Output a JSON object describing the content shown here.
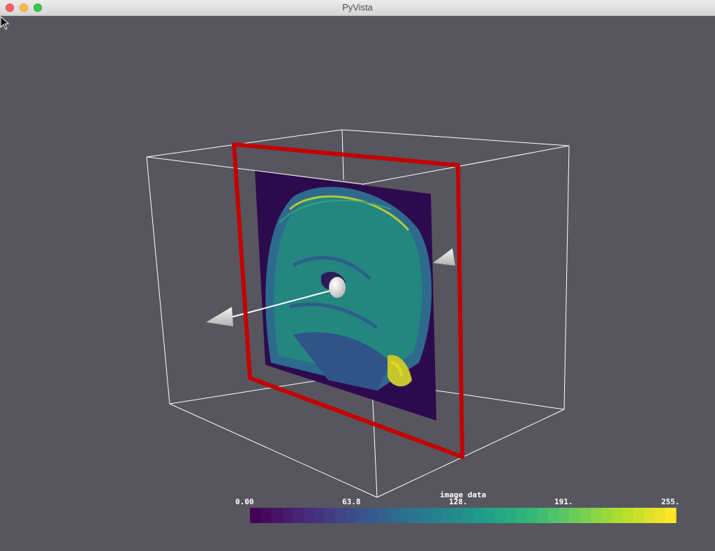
{
  "window": {
    "title": "PyVista"
  },
  "scene": {
    "background": "#57565e",
    "bounding_box_color": "#ffffff",
    "plane_widget_color": "#c40000",
    "colormap": "viridis"
  },
  "scalar_bar": {
    "title": "image data",
    "ticks": [
      "0.00",
      "63.8",
      "128.",
      "191.",
      "255."
    ],
    "colors": [
      "#440154",
      "#482778",
      "#3e4a89",
      "#31688e",
      "#26828e",
      "#1f9e89",
      "#35b779",
      "#6ece58",
      "#b5de2b",
      "#fde725"
    ]
  }
}
